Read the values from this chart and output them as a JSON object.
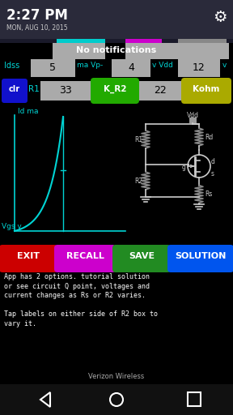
{
  "bg_color": "#000000",
  "status_bar_bg": "#2a2a3a",
  "time_text": "2:27 PM",
  "date_text": "MON, AUG 10, 2015",
  "notification_text": "No notifications",
  "cyan_color": "#00d4d4",
  "white": "#ffffff",
  "gray_box": "#aaaaaa",
  "label_Idss": "Idss",
  "val_Idss": "5",
  "label_ma": "ma Vp-",
  "val_Vp": "4",
  "label_v1": "v Vdd",
  "val_Vdd": "12",
  "label_v2": "v",
  "label_clr": "clr",
  "label_R1": "R1",
  "val_R1": "33",
  "label_KR2": "K_R2",
  "val_R2": "22",
  "label_Kohm": "Kohm",
  "label_Idma": "Id ma",
  "label_Vgsv": "Vgs v",
  "btn_exit": "EXIT",
  "btn_recall": "RECALL",
  "btn_save": "SAVE",
  "btn_solution": "SOLUTION",
  "btn_exit_color": "#cc0000",
  "btn_recall_color": "#cc00cc",
  "btn_save_color": "#228B22",
  "btn_solution_color": "#0055ee",
  "desc1": "App has 2 options. tutorial solution",
  "desc2": "or see circuit Q point, voltages and",
  "desc3": "current changes as Rs or R2 varies.",
  "desc4": "Tap labels on either side of R2 box to",
  "desc5": "vary it.",
  "carrier": "Verizon Wireless",
  "clr_btn_color": "#1111cc",
  "green_btn_color": "#22aa00",
  "gold_btn_color": "#aaaa00",
  "graph_color": "#00d4d4",
  "wire_color": "#cccccc",
  "resistor_color": "#888888"
}
